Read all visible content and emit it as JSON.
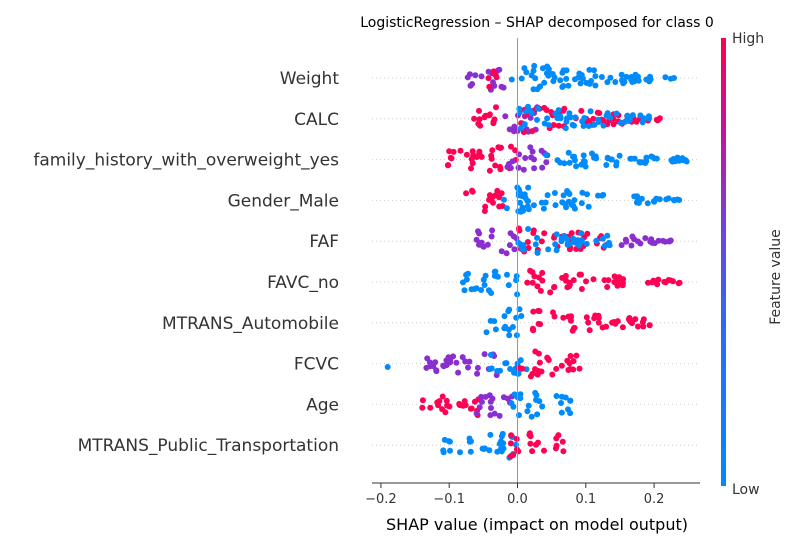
{
  "chart_data": {
    "type": "scatter",
    "title": "LogisticRegression – SHAP decomposed for class 0",
    "xlabel": "SHAP value (impact on model output)",
    "xlim": [
      -0.21,
      0.265
    ],
    "xticks": [
      -0.2,
      -0.1,
      0.0,
      0.1,
      0.2
    ],
    "xtick_labels": [
      "−0.2",
      "−0.1",
      "0.0",
      "0.1",
      "0.2"
    ],
    "colorbar": {
      "label": "Feature value",
      "high": "High",
      "low": "Low",
      "high_color": "#ff0052",
      "low_color": "#008bfb"
    },
    "features": [
      {
        "name": "Weight",
        "clusters": [
          {
            "from": -0.08,
            "to": -0.015,
            "color": "purple"
          },
          {
            "from": -0.05,
            "to": -0.03,
            "color": "red"
          },
          {
            "from": -0.01,
            "to": 0.07,
            "color": "blue"
          },
          {
            "from": 0.05,
            "to": 0.23,
            "color": "blue"
          }
        ]
      },
      {
        "name": "CALC",
        "clusters": [
          {
            "from": -0.07,
            "to": -0.02,
            "color": "red"
          },
          {
            "from": -0.02,
            "to": 0.03,
            "color": "purple"
          },
          {
            "from": 0.0,
            "to": 0.21,
            "color": "red"
          },
          {
            "from": 0.0,
            "to": 0.2,
            "color": "blue"
          }
        ]
      },
      {
        "name": "family_history_with_overweight_yes",
        "clusters": [
          {
            "from": -0.11,
            "to": -0.05,
            "color": "red"
          },
          {
            "from": -0.06,
            "to": 0.0,
            "color": "red"
          },
          {
            "from": -0.02,
            "to": 0.05,
            "color": "purple"
          },
          {
            "from": 0.04,
            "to": 0.25,
            "color": "blue"
          }
        ]
      },
      {
        "name": "Gender_Male",
        "clusters": [
          {
            "from": -0.08,
            "to": -0.02,
            "color": "red"
          },
          {
            "from": -0.02,
            "to": 0.02,
            "color": "blue"
          },
          {
            "from": 0.0,
            "to": 0.14,
            "color": "blue"
          },
          {
            "from": 0.17,
            "to": 0.24,
            "color": "blue"
          }
        ]
      },
      {
        "name": "FAF",
        "clusters": [
          {
            "from": -0.07,
            "to": 0.0,
            "color": "purple"
          },
          {
            "from": 0.0,
            "to": 0.13,
            "color": "red"
          },
          {
            "from": 0.0,
            "to": 0.14,
            "color": "blue"
          },
          {
            "from": 0.15,
            "to": 0.23,
            "color": "purple"
          }
        ]
      },
      {
        "name": "FAVC_no",
        "clusters": [
          {
            "from": -0.08,
            "to": -0.01,
            "color": "blue"
          },
          {
            "from": -0.02,
            "to": 0.0,
            "color": "blue"
          },
          {
            "from": 0.01,
            "to": 0.16,
            "color": "red"
          },
          {
            "from": 0.19,
            "to": 0.24,
            "color": "red"
          }
        ]
      },
      {
        "name": "MTRANS_Automobile",
        "clusters": [
          {
            "from": -0.05,
            "to": 0.01,
            "color": "blue"
          },
          {
            "from": 0.02,
            "to": 0.09,
            "color": "red"
          },
          {
            "from": 0.1,
            "to": 0.2,
            "color": "red"
          }
        ]
      },
      {
        "name": "FCVC",
        "clusters": [
          {
            "from": -0.19,
            "to": -0.19,
            "color": "blue"
          },
          {
            "from": -0.14,
            "to": -0.03,
            "color": "purple"
          },
          {
            "from": -0.04,
            "to": 0.02,
            "color": "blue"
          },
          {
            "from": 0.0,
            "to": 0.1,
            "color": "red"
          }
        ]
      },
      {
        "name": "Age",
        "clusters": [
          {
            "from": -0.14,
            "to": -0.05,
            "color": "red"
          },
          {
            "from": -0.06,
            "to": 0.0,
            "color": "purple"
          },
          {
            "from": -0.01,
            "to": 0.09,
            "color": "blue"
          }
        ]
      },
      {
        "name": "MTRANS_Public_Transportation",
        "clusters": [
          {
            "from": -0.11,
            "to": -0.02,
            "color": "blue"
          },
          {
            "from": -0.03,
            "to": 0.0,
            "color": "blue"
          },
          {
            "from": -0.01,
            "to": 0.07,
            "color": "red"
          }
        ]
      }
    ]
  }
}
